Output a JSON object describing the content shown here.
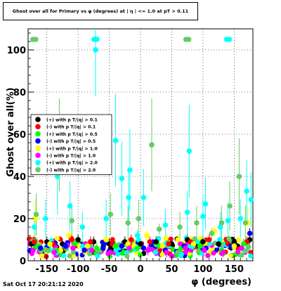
{
  "chart_data": {
    "type": "scatter",
    "title": "Ghost over all for Primary vs φ (degrees) at | η | <= 1.0 at pT > 0.11",
    "xlabel": "φ (degrees)",
    "ylabel": "Ghost over all(%)",
    "xlim": [
      -180,
      180
    ],
    "ylim": [
      0,
      110
    ],
    "xticks": [
      -150,
      -100,
      -50,
      0,
      50,
      100,
      150
    ],
    "yticks": [
      0,
      20,
      40,
      60,
      80,
      100
    ],
    "grid": true,
    "legend_position": "left-middle",
    "series": [
      {
        "name": "(+) with p T/|q| > 0.1",
        "color": "#000000",
        "points": [
          [
            -175,
            8
          ],
          [
            -150,
            9
          ],
          [
            -125,
            8
          ],
          [
            -100,
            10
          ],
          [
            -75,
            9
          ],
          [
            -50,
            8
          ],
          [
            -25,
            9
          ],
          [
            0,
            8
          ],
          [
            25,
            9
          ],
          [
            50,
            8
          ],
          [
            75,
            10
          ],
          [
            100,
            9
          ],
          [
            125,
            8
          ],
          [
            150,
            9
          ],
          [
            175,
            10
          ]
        ]
      },
      {
        "name": "(-) with p T/|q| > 0.1",
        "color": "#ff0000",
        "points": [
          [
            -170,
            9
          ],
          [
            -140,
            8
          ],
          [
            -110,
            10
          ],
          [
            -80,
            9
          ],
          [
            -45,
            8
          ],
          [
            -15,
            10
          ],
          [
            15,
            9
          ],
          [
            45,
            8
          ],
          [
            80,
            9
          ],
          [
            110,
            10
          ],
          [
            140,
            8
          ],
          [
            170,
            9
          ]
        ]
      },
      {
        "name": "(+) with p T/|q| > 0.5",
        "color": "#00ff00",
        "points": [
          [
            -165,
            7
          ],
          [
            -135,
            5
          ],
          [
            -105,
            8
          ],
          [
            -70,
            6
          ],
          [
            -40,
            7
          ],
          [
            -5,
            6
          ],
          [
            30,
            7
          ],
          [
            65,
            6
          ],
          [
            95,
            7
          ],
          [
            130,
            5
          ],
          [
            165,
            8
          ]
        ]
      },
      {
        "name": "(-) with p T/|q| > 0.5",
        "color": "#0000ff",
        "points": [
          [
            -160,
            6
          ],
          [
            -120,
            7
          ],
          [
            -90,
            5
          ],
          [
            -60,
            6
          ],
          [
            -30,
            7
          ],
          [
            5,
            6
          ],
          [
            40,
            5
          ],
          [
            70,
            7
          ],
          [
            105,
            6
          ],
          [
            145,
            7
          ],
          [
            175,
            13
          ]
        ]
      },
      {
        "name": "(+) with p T/|q| > 1.0",
        "color": "#ffff00",
        "points": [
          [
            -168,
            20
          ],
          [
            -145,
            8
          ],
          [
            -115,
            12
          ],
          [
            -85,
            7
          ],
          [
            -55,
            10
          ],
          [
            -20,
            8
          ],
          [
            10,
            12
          ],
          [
            35,
            7
          ],
          [
            60,
            10
          ],
          [
            85,
            8
          ],
          [
            118,
            14
          ],
          [
            150,
            7
          ],
          [
            172,
            18
          ]
        ]
      },
      {
        "name": "(-) with p T/|q| > 1.0",
        "color": "#ff00ff",
        "points": [
          [
            -172,
            5
          ],
          [
            -138,
            4
          ],
          [
            -108,
            6
          ],
          [
            -78,
            5
          ],
          [
            -48,
            4
          ],
          [
            -18,
            6
          ],
          [
            12,
            5
          ],
          [
            42,
            4
          ],
          [
            72,
            6
          ],
          [
            102,
            5
          ],
          [
            132,
            4
          ],
          [
            162,
            6
          ]
        ]
      },
      {
        "name": "(+) with p T/|q| > 2.0",
        "color": "#00ffff",
        "points": [
          [
            -170,
            16
          ],
          [
            -152,
            20
          ],
          [
            -133,
            40
          ],
          [
            -113,
            26
          ],
          [
            -93,
            16
          ],
          [
            -72,
            100
          ],
          [
            -55,
            20
          ],
          [
            -40,
            57
          ],
          [
            -30,
            39
          ],
          [
            -17,
            43
          ],
          [
            -19,
            30
          ],
          [
            -5,
            12
          ],
          [
            5,
            30
          ],
          [
            40,
            17
          ],
          [
            75,
            23
          ],
          [
            78,
            52
          ],
          [
            100,
            21
          ],
          [
            104,
            27
          ],
          [
            128,
            16
          ],
          [
            140,
            19
          ],
          [
            160,
            20
          ],
          [
            170,
            33
          ],
          [
            177,
            29
          ]
        ]
      },
      {
        "name": "(-) with p T/|q| > 2.0",
        "color": "#66cc66",
        "points": [
          [
            -167,
            22
          ],
          [
            -130,
            55
          ],
          [
            -110,
            19
          ],
          [
            -48,
            22
          ],
          [
            -20,
            18
          ],
          [
            -3,
            20
          ],
          [
            18,
            55
          ],
          [
            30,
            15
          ],
          [
            63,
            16
          ],
          [
            90,
            18
          ],
          [
            114,
            13
          ],
          [
            130,
            18
          ],
          [
            143,
            26
          ],
          [
            158,
            40
          ],
          [
            168,
            18
          ]
        ]
      }
    ],
    "points_above_axis": [
      {
        "x": -170,
        "y": 105,
        "series": "(-) with p T/|q| > 2.0"
      },
      {
        "x": -72,
        "y": 105,
        "series": "(+) with p T/|q| > 2.0"
      },
      {
        "x": 75,
        "y": 105,
        "series": "(-) with p T/|q| > 2.0"
      },
      {
        "x": 140,
        "y": 105,
        "series": "(+) with p T/|q| > 2.0"
      }
    ]
  },
  "timestamp": "Sat Oct 17 20:21:12 2020"
}
